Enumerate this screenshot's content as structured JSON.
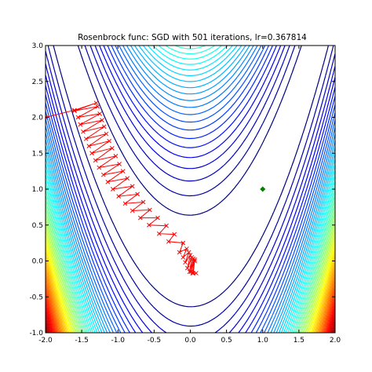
{
  "chart_data": {
    "type": "contour",
    "title": "Rosenbrock func: SGD with 501 iterations, lr=0.367814",
    "function": "rosenbrock",
    "xlim": [
      -2.0,
      2.0
    ],
    "ylim": [
      -1.0,
      3.0
    ],
    "xticks": [
      "-2.0",
      "-1.5",
      "-1.0",
      "-0.5",
      "0.0",
      "0.5",
      "1.0",
      "1.5",
      "2.0"
    ],
    "yticks": [
      "-1.0",
      "-0.5",
      "0.0",
      "0.5",
      "1.0",
      "1.5",
      "2.0",
      "2.5",
      "3.0"
    ],
    "contour_colormap": "jet",
    "grid": false,
    "optimum_marker": {
      "x": 1.0,
      "y": 1.0,
      "color": "#008000",
      "shape": "diamond"
    },
    "sgd_path": {
      "color": "#ff0000",
      "marker": "x",
      "iterations": 501,
      "start": {
        "x": -2.0,
        "y": 2.0
      },
      "points": [
        [
          -2.0,
          2.0
        ],
        [
          -1.6,
          2.1
        ],
        [
          -1.3,
          2.2
        ],
        [
          -1.6,
          2.09
        ],
        [
          -1.28,
          2.15
        ],
        [
          -1.55,
          2.0
        ],
        [
          -1.25,
          2.05
        ],
        [
          -1.52,
          1.9
        ],
        [
          -1.22,
          1.96
        ],
        [
          -1.48,
          1.8
        ],
        [
          -1.19,
          1.87
        ],
        [
          -1.44,
          1.7
        ],
        [
          -1.16,
          1.77
        ],
        [
          -1.4,
          1.6
        ],
        [
          -1.12,
          1.67
        ],
        [
          -1.36,
          1.5
        ],
        [
          -1.08,
          1.57
        ],
        [
          -1.31,
          1.4
        ],
        [
          -1.03,
          1.46
        ],
        [
          -1.26,
          1.3
        ],
        [
          -0.98,
          1.35
        ],
        [
          -1.2,
          1.2
        ],
        [
          -0.93,
          1.25
        ],
        [
          -1.14,
          1.1
        ],
        [
          -0.87,
          1.15
        ],
        [
          -1.07,
          1.0
        ],
        [
          -0.8,
          1.04
        ],
        [
          -0.99,
          0.9
        ],
        [
          -0.73,
          0.93
        ],
        [
          -0.9,
          0.8
        ],
        [
          -0.65,
          0.82
        ],
        [
          -0.8,
          0.7
        ],
        [
          -0.56,
          0.71
        ],
        [
          -0.69,
          0.6
        ],
        [
          -0.45,
          0.6
        ],
        [
          -0.57,
          0.5
        ],
        [
          -0.33,
          0.49
        ],
        [
          -0.43,
          0.38
        ],
        [
          -0.22,
          0.37
        ],
        [
          -0.3,
          0.27
        ],
        [
          -0.1,
          0.25
        ],
        [
          -0.15,
          0.12
        ],
        [
          -0.05,
          0.17
        ],
        [
          -0.1,
          0.05
        ],
        [
          -0.02,
          0.12
        ],
        [
          -0.07,
          -0.02
        ],
        [
          0.0,
          0.08
        ],
        [
          -0.04,
          -0.1
        ],
        [
          0.02,
          0.05
        ],
        [
          -0.01,
          -0.15
        ],
        [
          0.04,
          0.03
        ],
        [
          0.01,
          -0.15
        ],
        [
          0.06,
          0.02
        ],
        [
          0.03,
          -0.17
        ],
        [
          0.06,
          0.0
        ],
        [
          0.04,
          -0.17
        ],
        [
          0.08,
          -0.17
        ]
      ]
    }
  }
}
